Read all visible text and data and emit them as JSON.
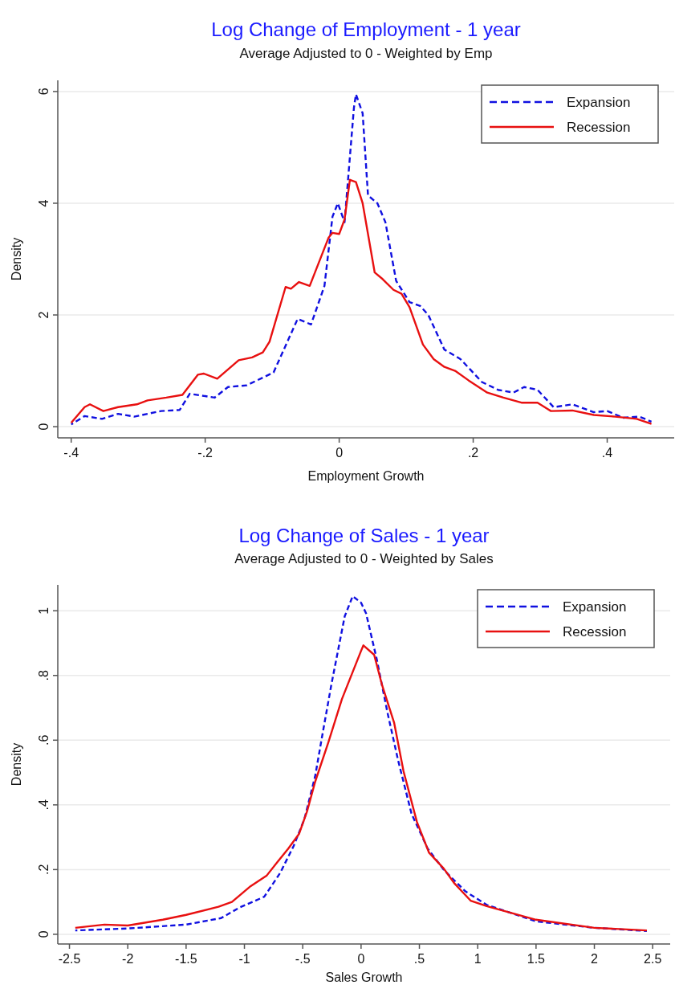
{
  "chart_data": [
    {
      "type": "line",
      "title": "Log Change of Employment - 1 year",
      "subtitle": "Average Adjusted to 0 - Weighted by Emp",
      "xlabel": "Employment Growth",
      "ylabel": "Density",
      "xlim": [
        -0.42,
        0.5
      ],
      "ylim": [
        -0.2,
        6.2
      ],
      "xticks": [
        {
          "value": -0.4,
          "label": "-.4"
        },
        {
          "value": -0.2,
          "label": "-.2"
        },
        0,
        {
          "value": 0.2,
          "label": ".2"
        },
        {
          "value": 0.4,
          "label": ".4"
        }
      ],
      "yticks": [
        0,
        2,
        4,
        6
      ],
      "grid": "y",
      "legend": "top right",
      "series": [
        {
          "name": "Expansion",
          "color": "#1010e0",
          "line_style": "dashed",
          "x": [
            -0.4,
            -0.38,
            -0.354,
            -0.33,
            -0.306,
            -0.266,
            -0.238,
            -0.223,
            -0.186,
            -0.166,
            -0.138,
            -0.098,
            -0.062,
            -0.042,
            -0.022,
            -0.01,
            -0.002,
            0.008,
            0.022,
            0.025,
            0.035,
            0.043,
            0.057,
            0.069,
            0.085,
            0.105,
            0.121,
            0.133,
            0.157,
            0.181,
            0.213,
            0.237,
            0.26,
            0.276,
            0.296,
            0.32,
            0.348,
            0.38,
            0.4,
            0.424,
            0.448,
            0.466
          ],
          "values": [
            0.04,
            0.19,
            0.14,
            0.23,
            0.18,
            0.28,
            0.3,
            0.59,
            0.52,
            0.71,
            0.74,
            0.97,
            1.93,
            1.83,
            2.52,
            3.76,
            4.0,
            3.66,
            5.71,
            5.95,
            5.61,
            4.14,
            4.0,
            3.66,
            2.61,
            2.23,
            2.16,
            2.0,
            1.38,
            1.21,
            0.8,
            0.66,
            0.61,
            0.71,
            0.66,
            0.35,
            0.4,
            0.26,
            0.28,
            0.16,
            0.18,
            0.09
          ]
        },
        {
          "name": "Recession",
          "color": "#e81010",
          "line_style": "solid",
          "x": [
            -0.4,
            -0.38,
            -0.372,
            -0.352,
            -0.33,
            -0.302,
            -0.286,
            -0.258,
            -0.234,
            -0.211,
            -0.202,
            -0.182,
            -0.15,
            -0.13,
            -0.114,
            -0.104,
            -0.08,
            -0.072,
            -0.06,
            -0.044,
            -0.016,
            -0.01,
            0.0,
            0.008,
            0.016,
            0.025,
            0.035,
            0.053,
            0.065,
            0.081,
            0.093,
            0.105,
            0.125,
            0.141,
            0.157,
            0.173,
            0.193,
            0.221,
            0.245,
            0.272,
            0.296,
            0.316,
            0.348,
            0.38,
            0.412,
            0.444,
            0.466
          ],
          "values": [
            0.07,
            0.35,
            0.4,
            0.28,
            0.35,
            0.4,
            0.47,
            0.52,
            0.57,
            0.93,
            0.95,
            0.86,
            1.19,
            1.24,
            1.33,
            1.52,
            2.5,
            2.47,
            2.59,
            2.52,
            3.38,
            3.47,
            3.45,
            3.71,
            4.42,
            4.38,
            4.0,
            2.76,
            2.64,
            2.45,
            2.38,
            2.14,
            1.47,
            1.21,
            1.07,
            1.0,
            0.83,
            0.61,
            0.52,
            0.43,
            0.43,
            0.28,
            0.29,
            0.21,
            0.18,
            0.14,
            0.05
          ]
        }
      ]
    },
    {
      "type": "line",
      "title": "Log Change of Sales - 1 year",
      "subtitle": "Average Adjusted to 0 - Weighted by Sales",
      "xlabel": "Sales Growth",
      "ylabel": "Density",
      "xlim": [
        -2.6,
        2.65
      ],
      "ylim": [
        -0.03,
        1.08
      ],
      "xticks": [
        -2.5,
        -2,
        -1.5,
        -1,
        {
          "value": -0.5,
          "label": "-.5"
        },
        0,
        {
          "value": 0.5,
          "label": ".5"
        },
        1,
        1.5,
        2,
        2.5
      ],
      "yticks": [
        0,
        {
          "value": 0.2,
          "label": ".2"
        },
        {
          "value": 0.4,
          "label": ".4"
        },
        {
          "value": 0.6,
          "label": ".6"
        },
        {
          "value": 0.8,
          "label": ".8"
        },
        1
      ],
      "grid": "y",
      "legend": "top right",
      "series": [
        {
          "name": "Expansion",
          "color": "#1010e0",
          "line_style": "dashed",
          "x": [
            -2.45,
            -2.0,
            -1.5,
            -1.2,
            -1.04,
            -0.83,
            -0.693,
            -0.578,
            -0.486,
            -0.394,
            -0.326,
            -0.256,
            -0.14,
            -0.072,
            0.0,
            0.043,
            0.134,
            0.226,
            0.318,
            0.433,
            0.571,
            0.71,
            0.893,
            1.077,
            1.5,
            2.0,
            2.45
          ],
          "values": [
            0.012,
            0.018,
            0.03,
            0.05,
            0.083,
            0.116,
            0.19,
            0.273,
            0.356,
            0.488,
            0.628,
            0.769,
            0.983,
            1.045,
            1.025,
            0.992,
            0.851,
            0.686,
            0.537,
            0.372,
            0.265,
            0.199,
            0.133,
            0.091,
            0.04,
            0.02,
            0.01
          ]
        },
        {
          "name": "Recession",
          "color": "#e81010",
          "line_style": "solid",
          "x": [
            -2.45,
            -2.2,
            -2.0,
            -1.7,
            -1.5,
            -1.222,
            -1.107,
            -0.946,
            -0.808,
            -0.716,
            -0.624,
            -0.532,
            -0.463,
            -0.394,
            -0.279,
            -0.164,
            0.0,
            0.02,
            0.112,
            0.181,
            0.284,
            0.364,
            0.479,
            0.583,
            0.709,
            0.801,
            0.939,
            1.077,
            1.5,
            2.0,
            2.45
          ],
          "values": [
            0.02,
            0.03,
            0.027,
            0.045,
            0.06,
            0.085,
            0.1,
            0.149,
            0.182,
            0.224,
            0.265,
            0.31,
            0.38,
            0.471,
            0.595,
            0.727,
            0.876,
            0.893,
            0.864,
            0.769,
            0.653,
            0.504,
            0.347,
            0.252,
            0.203,
            0.157,
            0.104,
            0.087,
            0.045,
            0.02,
            0.012
          ]
        }
      ]
    }
  ]
}
